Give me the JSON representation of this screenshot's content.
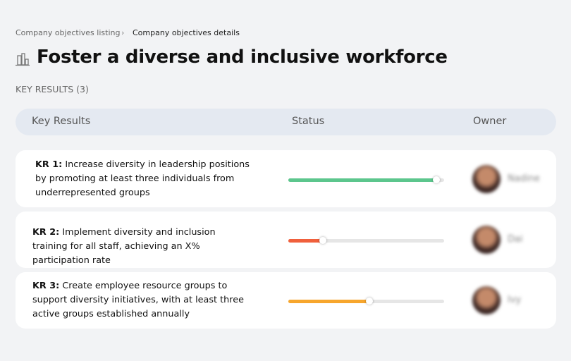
{
  "breadcrumb": [
    "Company objectives listing",
    "Company objectives details"
  ],
  "title": "Foster a diverse and inclusive workforce",
  "section_label": "KEY RESULTS (3)",
  "table": {
    "headers": [
      "Key Results",
      "Status",
      "Owner"
    ],
    "rows": [
      {
        "label": "KR 1:",
        "text": "Increase diversity in leadership positions by promoting at least three individuals from underrepresented groups",
        "progress": 95,
        "color": "#5cc68d",
        "owner": "Nadine"
      },
      {
        "label": "KR 2:",
        "text": "Implement diversity and inclusion training for all staff, achieving an X% participation rate",
        "progress": 22,
        "color": "#f0603c",
        "owner": "Dai"
      },
      {
        "label": "KR 3:",
        "text": "Create employee resource groups to support diversity initiatives, with at least three active groups established annually",
        "progress": 52,
        "color": "#f7a62d",
        "owner": "Ivy"
      }
    ]
  }
}
